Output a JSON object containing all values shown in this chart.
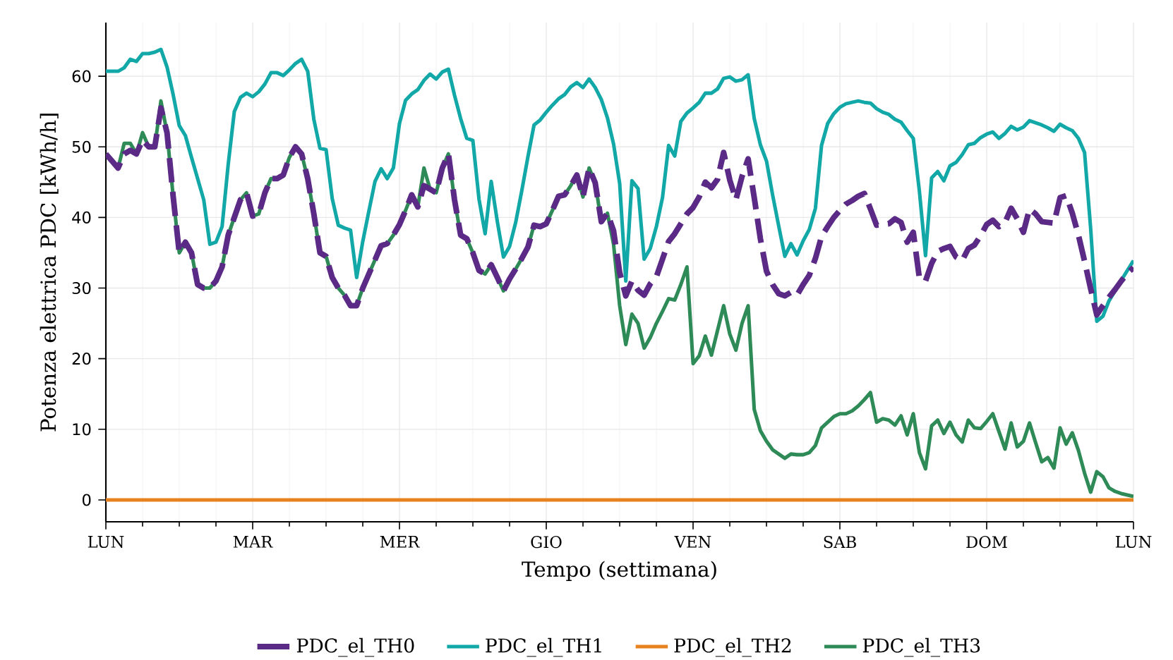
{
  "chart_data": {
    "type": "line",
    "xlabel": "Tempo (settimana)",
    "ylabel": "Potenza elettrica PDC [kWh/h]",
    "categories": [
      "LUN",
      null,
      null,
      null,
      null,
      null,
      null,
      null,
      null,
      null,
      null,
      null,
      null,
      null,
      null,
      null,
      null,
      null,
      null,
      null,
      null,
      null,
      null,
      null,
      "MAR",
      null,
      null,
      null,
      null,
      null,
      null,
      null,
      null,
      null,
      null,
      null,
      null,
      null,
      null,
      null,
      null,
      null,
      null,
      null,
      null,
      null,
      null,
      null,
      "MER",
      null,
      null,
      null,
      null,
      null,
      null,
      null,
      null,
      null,
      null,
      null,
      null,
      null,
      null,
      null,
      null,
      null,
      null,
      null,
      null,
      null,
      null,
      null,
      "GIO",
      null,
      null,
      null,
      null,
      null,
      null,
      null,
      null,
      null,
      null,
      null,
      null,
      null,
      null,
      null,
      null,
      null,
      null,
      null,
      null,
      null,
      null,
      null,
      "VEN",
      null,
      null,
      null,
      null,
      null,
      null,
      null,
      null,
      null,
      null,
      null,
      null,
      null,
      null,
      null,
      null,
      null,
      null,
      null,
      null,
      null,
      null,
      null,
      "SAB",
      null,
      null,
      null,
      null,
      null,
      null,
      null,
      null,
      null,
      null,
      null,
      null,
      null,
      null,
      null,
      null,
      null,
      null,
      null,
      null,
      null,
      null,
      null,
      "DOM",
      null,
      null,
      null,
      null,
      null,
      null,
      null,
      null,
      null,
      null,
      null,
      null,
      null,
      null,
      null,
      null,
      null,
      null,
      null,
      null,
      null,
      null,
      null,
      "LUN"
    ],
    "ylim": [
      -3.1,
      67.6
    ],
    "yticks": [
      0,
      10,
      20,
      30,
      40,
      50,
      60
    ],
    "grid": true,
    "legend": "bottom",
    "marker": "none",
    "series": [
      {
        "name": "PDC_el_TH0",
        "color": "#5b2a86",
        "line_style": "dashed",
        "values": [
          49,
          48,
          47,
          49,
          49.5,
          49,
          51,
          50,
          50,
          55.5,
          52,
          43,
          35,
          36.5,
          35,
          30.5,
          30,
          30,
          31,
          33,
          37.5,
          40,
          42.5,
          43.5,
          40.2,
          40.5,
          43.5,
          45.5,
          45.5,
          46,
          48.5,
          50,
          49,
          45.5,
          40.5,
          35,
          34.5,
          31.5,
          30,
          29,
          27.5,
          27.5,
          30,
          32,
          34,
          36,
          36.3,
          37.5,
          39,
          41,
          43.2,
          41.5,
          44.5,
          44,
          43.5,
          47,
          49,
          42.5,
          37.5,
          37,
          35,
          32.5,
          32,
          33.3,
          31.5,
          29.6,
          31.3,
          32.7,
          34.2,
          35.8,
          38.9,
          38.7,
          39.1,
          41,
          43,
          43.2,
          44.5,
          46,
          42.9,
          47,
          44.9,
          39.4,
          40.6,
          38.1,
          32.2,
          28.9,
          31,
          29.7,
          29,
          30.6,
          31.6,
          34.1,
          36.6,
          37.7,
          39.1,
          40.5,
          41.4,
          42.9,
          45,
          44.2,
          45.4,
          49.2,
          45.3,
          42.5,
          45.8,
          48.3,
          42.8,
          37,
          32.4,
          30.5,
          29.2,
          28.9,
          29.4,
          29,
          30.5,
          31.8,
          34.2,
          37.3,
          38.7,
          40,
          41,
          41.9,
          42.4,
          43,
          43.4,
          41.2,
          38.9,
          39,
          39.1,
          39.8,
          39.3,
          36.5,
          37.9,
          31.4,
          31,
          33.5,
          35.2,
          35.6,
          35.9,
          34.4,
          33.9,
          35.6,
          36.1,
          37.4,
          39,
          39.6,
          38.7,
          39.3,
          41.3,
          39.8,
          37.9,
          41.2,
          40.5,
          39.4,
          39.3,
          39.2,
          42.8,
          43.1,
          40.6,
          37.5,
          33.8,
          29.9,
          26.2,
          27.5,
          28.7,
          29.8,
          31,
          32.1,
          32.9
        ]
      },
      {
        "name": "PDC_el_TH1",
        "color": "#12a8a8",
        "line_style": "solid",
        "values": [
          60.7,
          60.7,
          60.7,
          61.2,
          62.4,
          62.1,
          63.2,
          63.2,
          63.4,
          63.8,
          61.3,
          57.4,
          53,
          51.6,
          48.5,
          45.5,
          42.5,
          36.2,
          36.5,
          38.7,
          47.5,
          55,
          57,
          57.6,
          57.1,
          57.8,
          58.9,
          60.5,
          60.5,
          60.1,
          60.9,
          61.8,
          62.4,
          60.7,
          53.9,
          49.8,
          49.6,
          42.7,
          38.9,
          38.5,
          38.2,
          31.5,
          36.6,
          40.9,
          45.1,
          46.9,
          45.5,
          47,
          53.3,
          56.6,
          57.5,
          58.1,
          59.4,
          60.3,
          59.6,
          60.6,
          61,
          57.3,
          54,
          51.2,
          50.9,
          42.6,
          37.7,
          45.1,
          39.4,
          34.4,
          35.9,
          39.3,
          43.8,
          48.6,
          53.1,
          53.8,
          54.9,
          55.9,
          56.8,
          57.4,
          58.5,
          59.1,
          58.4,
          59.6,
          58.4,
          56.7,
          54.1,
          50.4,
          44.8,
          31,
          45.2,
          44.1,
          34.1,
          35.6,
          38.7,
          42.8,
          50.2,
          48.7,
          53.6,
          54.8,
          55.5,
          56.3,
          57.6,
          57.6,
          58.2,
          59.7,
          59.9,
          59.3,
          59.5,
          60.2,
          54,
          50.3,
          48,
          43.2,
          38.8,
          34.5,
          36.3,
          34.7,
          36.7,
          38.3,
          41.3,
          50.2,
          53.3,
          54.7,
          55.6,
          56.1,
          56.3,
          56.5,
          56.3,
          56.2,
          55.4,
          54.9,
          54.6,
          53.9,
          53.5,
          52.3,
          51.2,
          43.7,
          34.6,
          45.6,
          46.5,
          45.2,
          47.3,
          47.8,
          48.9,
          50.3,
          50.5,
          51.3,
          51.8,
          52.1,
          51.2,
          51.9,
          52.9,
          52.4,
          52.8,
          53.7,
          53.4,
          53.1,
          52.7,
          52.2,
          53.2,
          52.7,
          52.3,
          51.2,
          49.2,
          38.4,
          25.3,
          26,
          28.2,
          29.6,
          31.1,
          32.5,
          33.9
        ]
      },
      {
        "name": "PDC_el_TH2",
        "color": "#e8821e",
        "line_style": "solid",
        "values": [
          0,
          0,
          0,
          0,
          0,
          0,
          0,
          0,
          0,
          0,
          0,
          0,
          0,
          0,
          0,
          0,
          0,
          0,
          0,
          0,
          0,
          0,
          0,
          0,
          0,
          0,
          0,
          0,
          0,
          0,
          0,
          0,
          0,
          0,
          0,
          0,
          0,
          0,
          0,
          0,
          0,
          0,
          0,
          0,
          0,
          0,
          0,
          0,
          0,
          0,
          0,
          0,
          0,
          0,
          0,
          0,
          0,
          0,
          0,
          0,
          0,
          0,
          0,
          0,
          0,
          0,
          0,
          0,
          0,
          0,
          0,
          0,
          0,
          0,
          0,
          0,
          0,
          0,
          0,
          0,
          0,
          0,
          0,
          0,
          0,
          0,
          0,
          0,
          0,
          0,
          0,
          0,
          0,
          0,
          0,
          0,
          0,
          0,
          0,
          0,
          0,
          0,
          0,
          0,
          0,
          0,
          0,
          0,
          0,
          0,
          0,
          0,
          0,
          0,
          0,
          0,
          0,
          0,
          0,
          0,
          0,
          0,
          0,
          0,
          0,
          0,
          0,
          0,
          0,
          0,
          0,
          0,
          0,
          0,
          0,
          0,
          0,
          0,
          0,
          0,
          0,
          0,
          0,
          0,
          0,
          0,
          0,
          0,
          0,
          0,
          0,
          0,
          0,
          0,
          0,
          0,
          0,
          0,
          0,
          0,
          0,
          0,
          0,
          0,
          0,
          0,
          0,
          0,
          0
        ]
      },
      {
        "name": "PDC_el_TH3",
        "color": "#2e8b57",
        "line_style": "solid",
        "values": [
          49,
          48,
          47,
          50.5,
          50.5,
          49,
          52,
          50,
          50,
          56.5,
          52,
          43,
          35,
          36.5,
          35,
          30.5,
          30,
          30,
          31,
          33,
          37.5,
          40,
          42.5,
          43.5,
          40.2,
          40.5,
          43.5,
          45.5,
          45.5,
          46,
          48.5,
          50,
          49,
          45.5,
          40.5,
          35,
          34.5,
          31.5,
          30,
          29,
          27.5,
          27.5,
          30,
          32,
          34,
          36,
          36.3,
          37.5,
          39,
          41,
          43.2,
          41.5,
          47,
          44,
          43.5,
          47,
          49,
          42.5,
          37.5,
          37,
          35,
          32.5,
          32,
          33.3,
          31.5,
          29.6,
          31.3,
          32.7,
          34.2,
          35.8,
          38.9,
          38.7,
          39.1,
          41,
          43,
          43.2,
          44.5,
          46,
          42.9,
          47,
          44.9,
          39.4,
          40.6,
          36.2,
          27.5,
          22,
          26.3,
          25,
          21.5,
          23,
          25,
          26.7,
          28.5,
          28.3,
          30.5,
          33,
          19.3,
          20.4,
          23.2,
          20.5,
          24,
          27.5,
          23.5,
          21.2,
          25,
          27.5,
          12.8,
          9.8,
          8.3,
          7.1,
          6.5,
          5.9,
          6.5,
          6.4,
          6.4,
          6.7,
          7.7,
          10.2,
          11,
          11.8,
          12.2,
          12.2,
          12.6,
          13.3,
          14.2,
          15.2,
          11,
          11.5,
          11.3,
          10.6,
          11.9,
          9.2,
          12.2,
          6.7,
          4.4,
          10.5,
          11.3,
          9.4,
          11,
          9.2,
          8.2,
          11.3,
          10.2,
          10.1,
          11.1,
          12.2,
          9.7,
          7.2,
          10.9,
          7.5,
          8.3,
          10.9,
          8.1,
          5.4,
          6,
          4.5,
          10.2,
          7.9,
          9.5,
          7,
          3.8,
          1.1,
          4,
          3.3,
          1.7,
          1.2,
          0.9,
          0.7,
          0.5
        ]
      }
    ]
  }
}
